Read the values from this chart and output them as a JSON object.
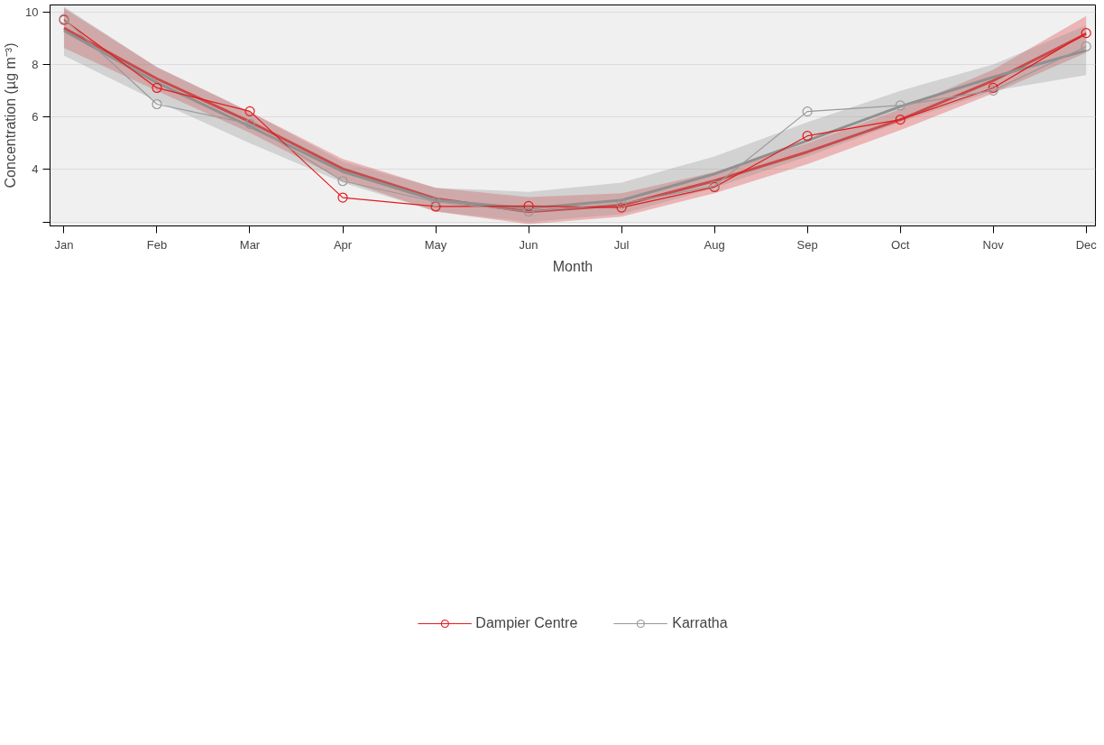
{
  "chart_data": {
    "type": "line",
    "xlabel": "Month",
    "ylabel": "Concentration (µg m⁻³)",
    "categories": [
      "Jan",
      "Feb",
      "Mar",
      "Apr",
      "May",
      "Jun",
      "Jul",
      "Aug",
      "Sep",
      "Oct",
      "Nov",
      "Dec"
    ],
    "series": [
      {
        "color": "#e03030",
        "values": [
          9.39,
          7.46,
          5.82,
          4.03,
          2.89,
          2.39,
          2.64,
          3.57,
          4.67,
          5.9,
          7.39,
          9.17
        ],
        "lower": [
          8.63,
          7.0,
          5.4,
          3.6,
          2.4,
          1.92,
          2.2,
          3.1,
          4.2,
          5.5,
          6.9,
          8.45
        ],
        "upper": [
          10.15,
          7.9,
          6.2,
          4.4,
          3.3,
          2.95,
          3.1,
          3.9,
          5.0,
          6.3,
          7.8,
          9.85
        ]
      },
      {
        "color": "#909090",
        "values": [
          9.29,
          7.31,
          5.64,
          3.92,
          2.83,
          2.52,
          2.83,
          3.83,
          5.1,
          6.4,
          7.52,
          8.54
        ],
        "lower": [
          8.34,
          6.6,
          5.0,
          3.5,
          2.4,
          2.0,
          2.3,
          3.3,
          4.5,
          5.8,
          7.0,
          7.6
        ],
        "upper": [
          10.2,
          7.9,
          6.2,
          4.3,
          3.3,
          3.15,
          3.5,
          4.5,
          5.8,
          7.0,
          8.0,
          9.49
        ]
      },
      {
        "name": "Dampier Centre",
        "marker": "circle",
        "color": "#e41a1c",
        "values": [
          9.7,
          7.11,
          6.22,
          2.93,
          2.59,
          2.61,
          2.55,
          3.33,
          5.28,
          5.9,
          7.11,
          9.2
        ]
      },
      {
        "name": "Karratha",
        "marker": "circle",
        "color": "#999999",
        "values": [
          9.74,
          6.49,
          5.74,
          3.56,
          2.77,
          2.4,
          2.7,
          3.37,
          6.21,
          6.44,
          7.01,
          8.69
        ]
      }
    ],
    "ylim": [
      1.85,
      10.27
    ],
    "yticks": [
      {
        "value": 2,
        "label": null
      },
      4,
      6,
      8,
      10
    ],
    "grid": "y",
    "legend": "bottom"
  }
}
